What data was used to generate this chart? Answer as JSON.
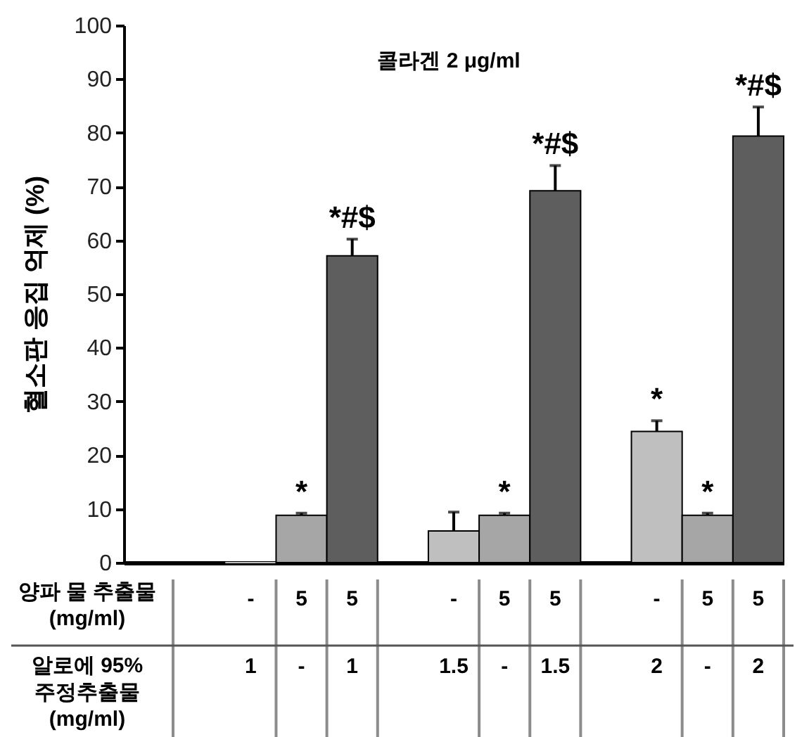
{
  "chart_data": {
    "type": "bar",
    "title": "콜라겐 2 μg/ml",
    "ylabel": "혈소판 응집 억제 (%)",
    "categories": [
      null,
      null,
      "-\n1",
      "5\n-",
      "5\n1",
      null,
      "-\n1.5",
      "5\n-",
      "5\n1.5",
      null,
      "-\n2",
      "5\n-",
      "5\n2"
    ],
    "values": [
      null,
      null,
      0,
      8.8,
      57.1,
      null,
      5.9,
      8.8,
      69.2,
      null,
      24.4,
      8.8,
      79.4
    ],
    "colors": [
      null,
      null,
      "#bfbfbf",
      "#a6a6a6",
      "#5e5e5e",
      null,
      "#bfbfbf",
      "#a6a6a6",
      "#5e5e5e",
      null,
      "#bfbfbf",
      "#a6a6a6",
      "#5e5e5e"
    ],
    "errors": [
      null,
      null,
      null,
      [
        8.8,
        9.2
      ],
      [
        57.1,
        60.2
      ],
      null,
      [
        5.9,
        9.4
      ],
      [
        8.8,
        9.2
      ],
      [
        69.2,
        73.9
      ],
      null,
      [
        24.4,
        26.4
      ],
      [
        8.8,
        9.2
      ],
      [
        79.4,
        84.8
      ]
    ],
    "value_labels": [
      null,
      null,
      null,
      "*",
      "*#$",
      null,
      null,
      "*",
      "*#$",
      null,
      "*",
      "*",
      "*#$"
    ],
    "ylim": [
      0,
      100
    ],
    "yticks": [
      0,
      10,
      20,
      30,
      40,
      50,
      60,
      70,
      80,
      90,
      100
    ],
    "annotations": [
      "양파 물 추출물 (mg/ml)",
      "알로에 95% 주정추출물 (mg/ml)"
    ]
  }
}
